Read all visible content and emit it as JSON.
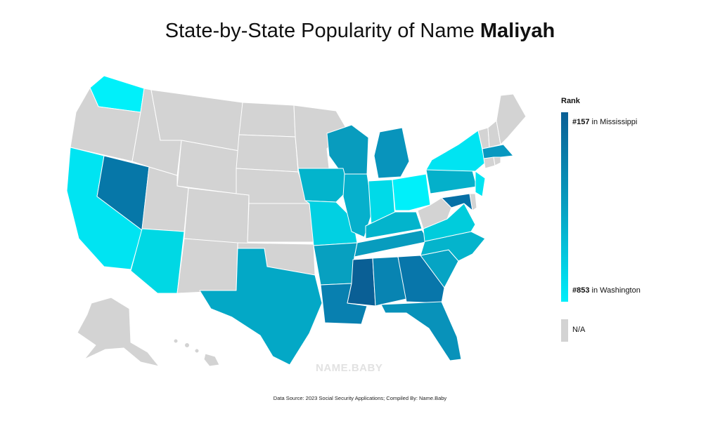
{
  "title": {
    "prefix": "State-by-State Popularity of Name ",
    "name": "Maliyah"
  },
  "legend": {
    "title": "Rank",
    "top_rank": "#157",
    "top_state": " in Mississippi",
    "bottom_rank": "#853",
    "bottom_state": " in Washington",
    "na_label": "N/A",
    "colors": {
      "high": "#0a5f95",
      "mid": "#089fc1",
      "low": "#00eefa",
      "na": "#d3d3d3"
    }
  },
  "watermark": "NAME.BABY",
  "footer": "Data Source: 2023 Social Security Applications; Compiled By: Name.Baby",
  "map_data": {
    "type": "choropleth",
    "region": "United States",
    "scale": {
      "best_rank": 157,
      "worst_rank": 853
    },
    "states": [
      {
        "name": "Mississippi",
        "rank": 157
      },
      {
        "name": "Washington",
        "rank": 853
      },
      {
        "name": "Oregon",
        "rank": null
      },
      {
        "name": "Idaho",
        "rank": null
      },
      {
        "name": "Montana",
        "rank": null
      },
      {
        "name": "Wyoming",
        "rank": null
      },
      {
        "name": "Utah",
        "rank": null
      },
      {
        "name": "Colorado",
        "rank": null
      },
      {
        "name": "New Mexico",
        "rank": null
      },
      {
        "name": "North Dakota",
        "rank": null
      },
      {
        "name": "South Dakota",
        "rank": null
      },
      {
        "name": "Nebraska",
        "rank": null
      },
      {
        "name": "Kansas",
        "rank": null
      },
      {
        "name": "Oklahoma",
        "rank": null
      },
      {
        "name": "Minnesota",
        "rank": null
      },
      {
        "name": "West Virginia",
        "rank": null
      },
      {
        "name": "Maine",
        "rank": null
      },
      {
        "name": "Vermont",
        "rank": null
      },
      {
        "name": "New Hampshire",
        "rank": null
      },
      {
        "name": "Alaska",
        "rank": null
      },
      {
        "name": "Hawaii",
        "rank": null
      }
    ]
  }
}
